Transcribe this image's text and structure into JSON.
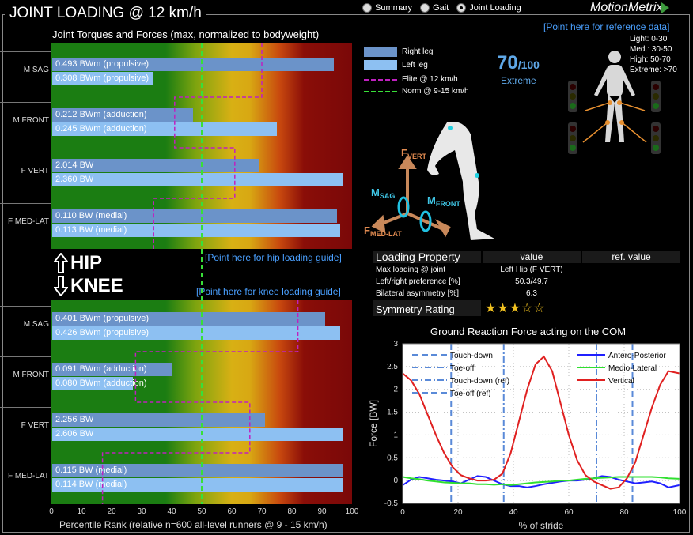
{
  "title": "JOINT LOADING @ 12 km/h",
  "nav": {
    "options": [
      "Summary",
      "Gait",
      "Joint Loading"
    ],
    "selected": "Joint Loading"
  },
  "logo": "MotionMetrix",
  "reference_link": "[Point here for reference data]",
  "subtitle": "Joint Torques and Forces (max, normalized to bodyweight)",
  "bars_chart": {
    "x_ticks": [
      "0",
      "10",
      "20",
      "30",
      "40",
      "50",
      "60",
      "70",
      "80",
      "90",
      "100"
    ],
    "xlabel": "Percentile Rank (relative n=600 all-level runners @ 9 - 15 km/h)",
    "hip": {
      "rows": [
        {
          "label": "M SAG",
          "right": {
            "text": "0.493 BWm (propulsive)",
            "pct": 94
          },
          "left": {
            "text": "0.308 BWm (propulsive)",
            "pct": 34
          }
        },
        {
          "label": "M FRONT",
          "right": {
            "text": "0.212 BWm (adduction)",
            "pct": 47
          },
          "left": {
            "text": "0.245 BWm (adduction)",
            "pct": 75
          }
        },
        {
          "label": "F VERT",
          "right": {
            "text": "2.014 BW",
            "pct": 69
          },
          "left": {
            "text": "2.360 BW",
            "pct": 97
          }
        },
        {
          "label": "F MED-LAT",
          "right": {
            "text": "0.110 BW  (medial)",
            "pct": 95
          },
          "left": {
            "text": "0.113 BW  (medial)",
            "pct": 96
          }
        }
      ],
      "elite_pct": [
        70,
        41,
        61,
        34
      ]
    },
    "knee": {
      "rows": [
        {
          "label": "M SAG",
          "right": {
            "text": "0.401 BWm (propulsive)",
            "pct": 91
          },
          "left": {
            "text": "0.426 BWm (propulsive)",
            "pct": 96
          }
        },
        {
          "label": "M FRONT",
          "right": {
            "text": "0.091 BWm (adduction)",
            "pct": 40
          },
          "left": {
            "text": "0.080 BWm (adduction)",
            "pct": 27
          }
        },
        {
          "label": "F VERT",
          "right": {
            "text": "2.256 BW",
            "pct": 71
          },
          "left": {
            "text": "2.606 BW",
            "pct": 97
          }
        },
        {
          "label": "F MED-LAT",
          "right": {
            "text": "0.115 BW  (medial)",
            "pct": 97
          },
          "left": {
            "text": "0.114 BW  (medial)",
            "pct": 97
          }
        }
      ],
      "elite_pct": [
        82,
        28,
        66,
        17
      ]
    },
    "norm_pct": 50,
    "hip_label": "HIP",
    "knee_label": "KNEE",
    "hip_guide": "[Point here for hip loading guide]",
    "knee_guide": "[Point here for knee loading guide]"
  },
  "legend": {
    "right_leg": "Right leg",
    "left_leg": "Left leg",
    "elite": "Elite @ 12 km/h",
    "norm": "Norm @ 9-15 km/h"
  },
  "score": {
    "value": "70",
    "max": "/100",
    "level": "Extreme"
  },
  "levels": [
    "Light: 0-30",
    "Med.: 30-50",
    "High: 50-70",
    "Extreme: >70"
  ],
  "axis_diagram": {
    "f_vert": [
      "F",
      "VERT"
    ],
    "m_sag": [
      "M",
      "SAG"
    ],
    "m_front": [
      "M",
      "FRONT"
    ],
    "f_medlat": [
      "F",
      "MED-LAT"
    ]
  },
  "property_table": {
    "headers": [
      "Loading Property",
      "value",
      "ref. value"
    ],
    "rows": [
      [
        "Max loading @ joint",
        "Left Hip (F VERT)",
        ""
      ],
      [
        "Left/right preference [%]",
        "50.3/49.7",
        ""
      ],
      [
        "Bilateral asymmetry [%]",
        "6.3",
        ""
      ]
    ],
    "symmetry_label": "Symmetry Rating",
    "symmetry_stars": 3,
    "symmetry_max": 5
  },
  "colors": {
    "right_bar": "#6b93c9",
    "left_bar": "#8dc0f2",
    "elite": "#c020c0",
    "norm": "#38e038",
    "accent": "#4aa0ff"
  },
  "chart_data": {
    "type": "line",
    "title": "Ground Reaction Force acting on the COM",
    "xlabel": "% of stride",
    "ylabel": "Force [BW]",
    "xlim": [
      0,
      100
    ],
    "ylim": [
      -0.5,
      3
    ],
    "x_ticks": [
      0,
      20,
      40,
      60,
      80,
      100
    ],
    "y_ticks": [
      -0.5,
      0,
      0.5,
      1,
      1.5,
      2,
      2.5,
      3
    ],
    "grid": true,
    "x": [
      0,
      3,
      6,
      9,
      12,
      15,
      18,
      21,
      24,
      27,
      30,
      33,
      36,
      39,
      42,
      45,
      48,
      51,
      54,
      57,
      60,
      63,
      66,
      69,
      72,
      75,
      78,
      81,
      84,
      87,
      90,
      93,
      96,
      100
    ],
    "series": [
      {
        "name": "Antero-Posterior",
        "color": "#2020ff",
        "values": [
          -0.1,
          0.02,
          0.08,
          0.05,
          0.02,
          0.0,
          -0.02,
          -0.06,
          0.02,
          0.1,
          0.08,
          0.0,
          -0.08,
          -0.12,
          -0.12,
          -0.15,
          -0.12,
          -0.08,
          -0.05,
          -0.02,
          0.0,
          0.0,
          0.02,
          0.05,
          0.1,
          0.08,
          0.02,
          -0.02,
          -0.06,
          -0.04,
          -0.02,
          -0.06,
          -0.15,
          -0.1
        ]
      },
      {
        "name": "Medio-Lateral",
        "color": "#30e030",
        "values": [
          0.08,
          0.05,
          0.03,
          0.0,
          -0.02,
          -0.04,
          -0.05,
          -0.06,
          -0.06,
          -0.08,
          -0.08,
          -0.09,
          -0.08,
          -0.1,
          -0.08,
          -0.06,
          -0.04,
          -0.03,
          -0.02,
          0.0,
          0.0,
          0.02,
          0.04,
          0.05,
          0.06,
          0.07,
          0.08,
          0.08,
          0.08,
          0.08,
          0.08,
          0.07,
          0.05,
          0.04
        ]
      },
      {
        "name": "Vertical",
        "color": "#e02020",
        "values": [
          2.35,
          2.2,
          1.9,
          1.45,
          1.0,
          0.6,
          0.3,
          0.12,
          0.05,
          0.0,
          0.0,
          0.02,
          0.15,
          0.6,
          1.3,
          2.0,
          2.55,
          2.72,
          2.4,
          1.7,
          1.0,
          0.45,
          0.12,
          -0.02,
          -0.1,
          -0.18,
          -0.15,
          0.05,
          0.4,
          1.0,
          1.6,
          2.1,
          2.4,
          2.35
        ]
      }
    ],
    "events": [
      {
        "name": "Touch-down",
        "x": 17.5,
        "style": "dashed"
      },
      {
        "name": "Toe-off",
        "x": 36.5,
        "style": "dashdot"
      },
      {
        "name": "Touch-down (ref)",
        "x": 70,
        "style": "dashdot"
      },
      {
        "name": "Toe-off (ref)",
        "x": 83,
        "style": "dashed"
      }
    ],
    "legend_left": [
      "Touch-down",
      "Toe-off",
      "Touch-down (ref)",
      "Toe-off (ref)"
    ],
    "legend_right": [
      "Antero-Posterior",
      "Medio-Lateral",
      "Vertical"
    ]
  }
}
